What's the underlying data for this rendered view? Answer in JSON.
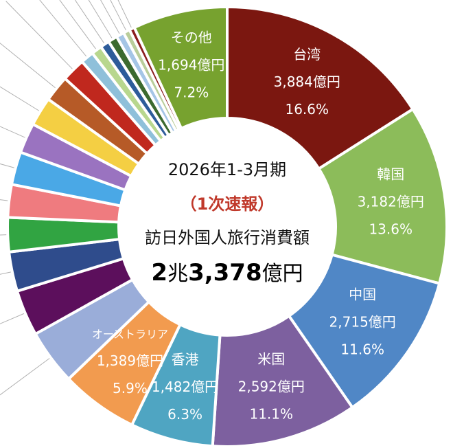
{
  "chart_data": {
    "type": "pie",
    "title": "2026年1-3月期",
    "subtitle": "（1次速報）",
    "center_label": "訪日外国人旅行消費額",
    "total": {
      "num1": "2",
      "unit1": "兆",
      "num2": "3,378",
      "unit2": "億円"
    },
    "slices": [
      {
        "name": "台湾",
        "value_text": "3,884億円",
        "pct_text": "16.6%",
        "percent": 16.6,
        "color": "#7b1710"
      },
      {
        "name": "韓国",
        "value_text": "3,182億円",
        "pct_text": "13.6%",
        "percent": 13.6,
        "color": "#8cbc5a"
      },
      {
        "name": "中国",
        "value_text": "2,715億円",
        "pct_text": "11.6%",
        "percent": 11.6,
        "color": "#5087c6"
      },
      {
        "name": "米国",
        "value_text": "2,592億円",
        "pct_text": "11.1%",
        "percent": 11.1,
        "color": "#7d609f"
      },
      {
        "name": "香港",
        "value_text": "1,482億円",
        "pct_text": "6.3%",
        "percent": 6.3,
        "color": "#4fa5c2"
      },
      {
        "name": "オーストラリア",
        "value_text": "1,389億円",
        "pct_text": "5.9%",
        "percent": 5.9,
        "color": "#f29b4f"
      },
      {
        "name": "",
        "percent": 4.2,
        "color": "#9aadd9"
      },
      {
        "name": "",
        "percent": 3.5,
        "color": "#5c0f5c"
      },
      {
        "name": "",
        "percent": 3.0,
        "color": "#2f4c8c"
      },
      {
        "name": "",
        "percent": 2.6,
        "color": "#31a442"
      },
      {
        "name": "",
        "percent": 2.5,
        "color": "#ef7b7f"
      },
      {
        "name": "",
        "percent": 2.5,
        "color": "#4aa8e6"
      },
      {
        "name": "",
        "percent": 2.3,
        "color": "#9a73c0"
      },
      {
        "name": "",
        "percent": 2.2,
        "color": "#f4cf43"
      },
      {
        "name": "",
        "percent": 2.0,
        "color": "#b65a27"
      },
      {
        "name": "",
        "percent": 1.8,
        "color": "#c0281e"
      },
      {
        "name": "",
        "percent": 1.0,
        "color": "#8fc0da"
      },
      {
        "name": "",
        "percent": 0.8,
        "color": "#b8d78e"
      },
      {
        "name": "",
        "percent": 0.7,
        "color": "#2d5c9a"
      },
      {
        "name": "",
        "percent": 0.7,
        "color": "#3c6a2f"
      },
      {
        "name": "",
        "percent": 0.6,
        "color": "#a5c5e6"
      },
      {
        "name": "",
        "percent": 0.5,
        "color": "#b9cd9a"
      },
      {
        "name": "",
        "percent": 0.4,
        "color": "#8b1e1e"
      },
      {
        "name": "その他",
        "value_text": "1,694億円",
        "pct_text": "7.2%",
        "percent": 7.2,
        "color": "#77a22f"
      }
    ]
  }
}
